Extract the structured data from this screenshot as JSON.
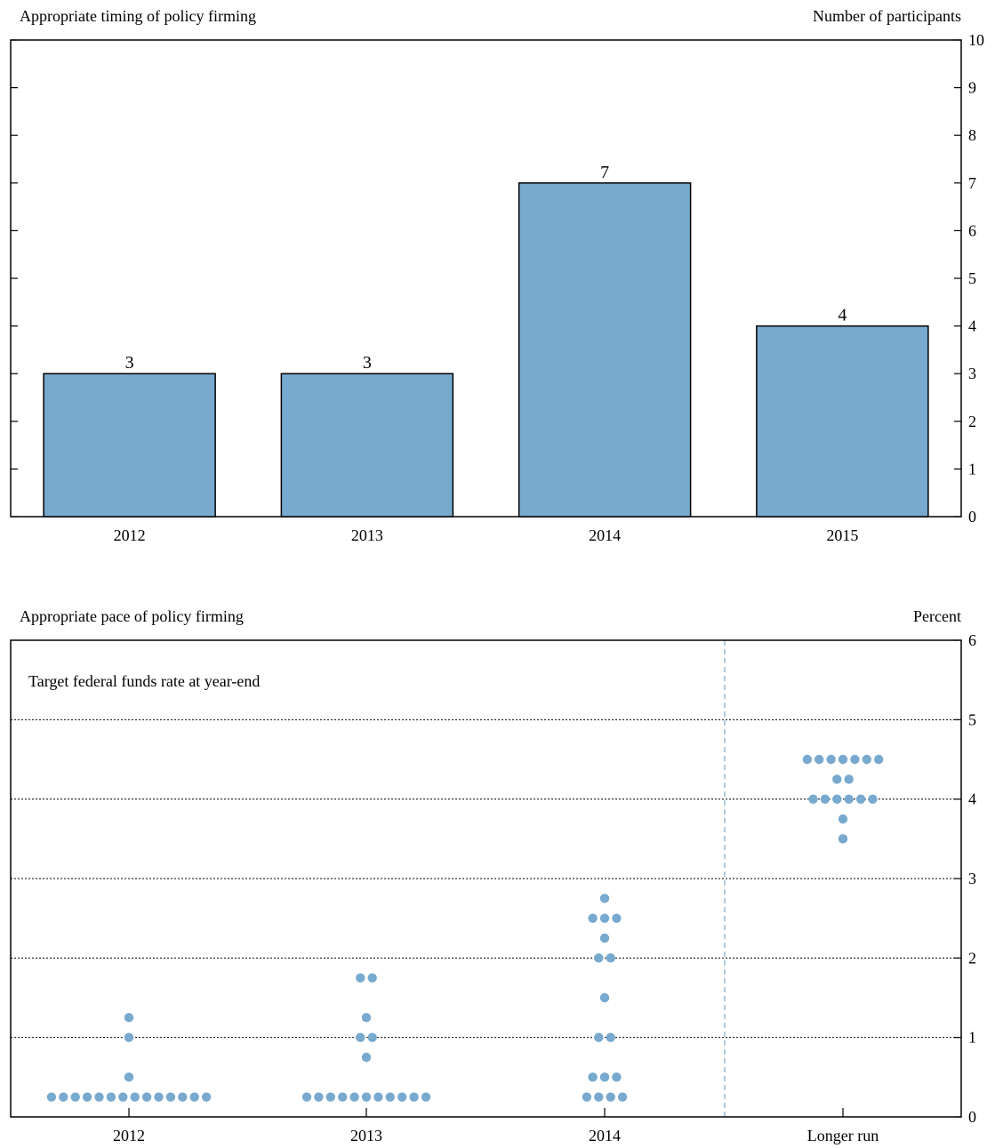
{
  "colors": {
    "accent": "#78a9ce",
    "frame": "#000000",
    "divider": "#78a9ce"
  },
  "chart_data": [
    {
      "type": "bar",
      "title": "Appropriate timing of policy firming",
      "ylabel": "Number of participants",
      "categories": [
        "2012",
        "2013",
        "2014",
        "2015"
      ],
      "values": [
        3,
        3,
        7,
        4
      ],
      "data_labels": [
        "3",
        "3",
        "7",
        "4"
      ],
      "ylim": [
        0,
        10
      ],
      "yticks": [
        "0",
        "1",
        "2",
        "3",
        "4",
        "5",
        "6",
        "7",
        "8",
        "9",
        "10"
      ],
      "grid": false,
      "y_axis_side": "right"
    },
    {
      "type": "scatter",
      "title": "Appropriate pace of policy firming",
      "ylabel": "Percent",
      "annotation": "Target federal funds rate at year-end",
      "categories": [
        "2012",
        "2013",
        "2014",
        "Longer run"
      ],
      "ylim": [
        0,
        6
      ],
      "yticks": [
        "0",
        "1",
        "2",
        "3",
        "4",
        "5",
        "6"
      ],
      "grid": true,
      "y_axis_side": "right",
      "series": [
        {
          "category": "2012",
          "points": [
            {
              "y": 0.25,
              "count": 14
            },
            {
              "y": 0.5,
              "count": 1
            },
            {
              "y": 1.0,
              "count": 1
            },
            {
              "y": 1.25,
              "count": 1
            }
          ]
        },
        {
          "category": "2013",
          "points": [
            {
              "y": 0.25,
              "count": 11
            },
            {
              "y": 0.75,
              "count": 1
            },
            {
              "y": 1.0,
              "count": 2
            },
            {
              "y": 1.25,
              "count": 1
            },
            {
              "y": 1.75,
              "count": 2
            }
          ]
        },
        {
          "category": "2014",
          "points": [
            {
              "y": 0.25,
              "count": 4
            },
            {
              "y": 0.5,
              "count": 3
            },
            {
              "y": 1.0,
              "count": 2
            },
            {
              "y": 1.5,
              "count": 1
            },
            {
              "y": 2.0,
              "count": 2
            },
            {
              "y": 2.25,
              "count": 1
            },
            {
              "y": 2.5,
              "count": 3
            },
            {
              "y": 2.75,
              "count": 1
            }
          ]
        },
        {
          "category": "Longer run",
          "points": [
            {
              "y": 3.5,
              "count": 1
            },
            {
              "y": 3.75,
              "count": 1
            },
            {
              "y": 4.0,
              "count": 6
            },
            {
              "y": 4.25,
              "count": 2
            },
            {
              "y": 4.5,
              "count": 7
            }
          ]
        }
      ]
    }
  ]
}
